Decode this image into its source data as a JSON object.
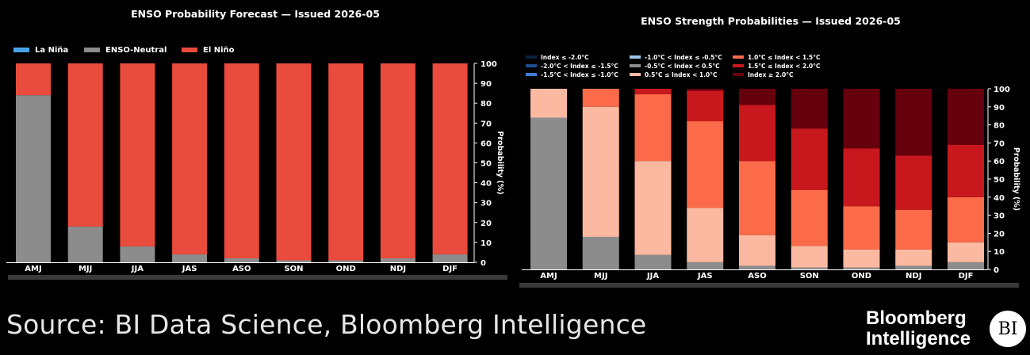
{
  "chart_data": [
    {
      "type": "bar",
      "stacked": true,
      "title": "ENSO Probability Forecast — Issued 2026-05",
      "ylabel": "Probability (%)",
      "ylim": [
        0,
        100
      ],
      "yticks": [
        0,
        10,
        20,
        30,
        40,
        50,
        60,
        70,
        80,
        90,
        100
      ],
      "legend_position": "top-left",
      "categories": [
        "AMJ",
        "MJJ",
        "JJA",
        "JAS",
        "ASO",
        "SON",
        "OND",
        "NDJ",
        "DJF"
      ],
      "series": [
        {
          "name": "La Niña",
          "color": "#4aa3e8",
          "values": [
            0,
            0,
            0,
            0,
            0,
            0,
            0,
            0,
            0
          ]
        },
        {
          "name": "ENSO-Neutral",
          "color": "#8c8c8c",
          "values": [
            84,
            18,
            8,
            4,
            2,
            1,
            1,
            2,
            4
          ]
        },
        {
          "name": "El Niño",
          "color": "#e94b3c",
          "values": [
            16,
            82,
            92,
            96,
            98,
            99,
            99,
            98,
            96
          ]
        }
      ]
    },
    {
      "type": "bar",
      "stacked": true,
      "title": "ENSO Strength Probabilities — Issued 2026-05",
      "ylabel": "Probability (%)",
      "ylim": [
        0,
        100
      ],
      "yticks": [
        0,
        10,
        20,
        30,
        40,
        50,
        60,
        70,
        80,
        90,
        100
      ],
      "legend_position": "top",
      "categories": [
        "AMJ",
        "MJJ",
        "JJA",
        "JAS",
        "ASO",
        "SON",
        "OND",
        "NDJ",
        "DJF"
      ],
      "series": [
        {
          "name": "Index ≤ -2.0°C",
          "color": "#0a2240",
          "values": [
            0,
            0,
            0,
            0,
            0,
            0,
            0,
            0,
            0
          ]
        },
        {
          "name": "-2.0°C < Index ≤ -1.5°C",
          "color": "#1f4e8c",
          "values": [
            0,
            0,
            0,
            0,
            0,
            0,
            0,
            0,
            0
          ]
        },
        {
          "name": "-1.5°C < Index ≤ -1.0°C",
          "color": "#3f7fcf",
          "values": [
            0,
            0,
            0,
            0,
            0,
            0,
            0,
            0,
            0
          ]
        },
        {
          "name": "-1.0°C < Index ≤ -0.5°C",
          "color": "#9cc7ea",
          "values": [
            0,
            0,
            0,
            0,
            0,
            0,
            0,
            0,
            0
          ]
        },
        {
          "name": "-0.5°C < Index < 0.5°C",
          "color": "#8c8c8c",
          "values": [
            84,
            18,
            8,
            4,
            2,
            1,
            1,
            2,
            4
          ]
        },
        {
          "name": "0.5°C ≤ Index < 1.0°C",
          "color": "#fbb9a2",
          "values": [
            16,
            72,
            52,
            30,
            17,
            12,
            10,
            9,
            11
          ]
        },
        {
          "name": "1.0°C ≤ Index < 1.5°C",
          "color": "#fb6b4a",
          "values": [
            0,
            10,
            37,
            48,
            41,
            31,
            24,
            22,
            25
          ]
        },
        {
          "name": "1.5°C ≤ Index < 2.0°C",
          "color": "#c9181d",
          "values": [
            0,
            0,
            3,
            17,
            31,
            34,
            32,
            30,
            29
          ]
        },
        {
          "name": "Index ≥ 2.0°C",
          "color": "#67000d",
          "values": [
            0,
            0,
            0,
            1,
            9,
            22,
            33,
            37,
            31
          ]
        }
      ]
    }
  ],
  "footer": {
    "source": "Source: BI Data Science, Bloomberg Intelligence",
    "brand_line1": "Bloomberg",
    "brand_line2": "Intelligence",
    "badge": "BI"
  }
}
